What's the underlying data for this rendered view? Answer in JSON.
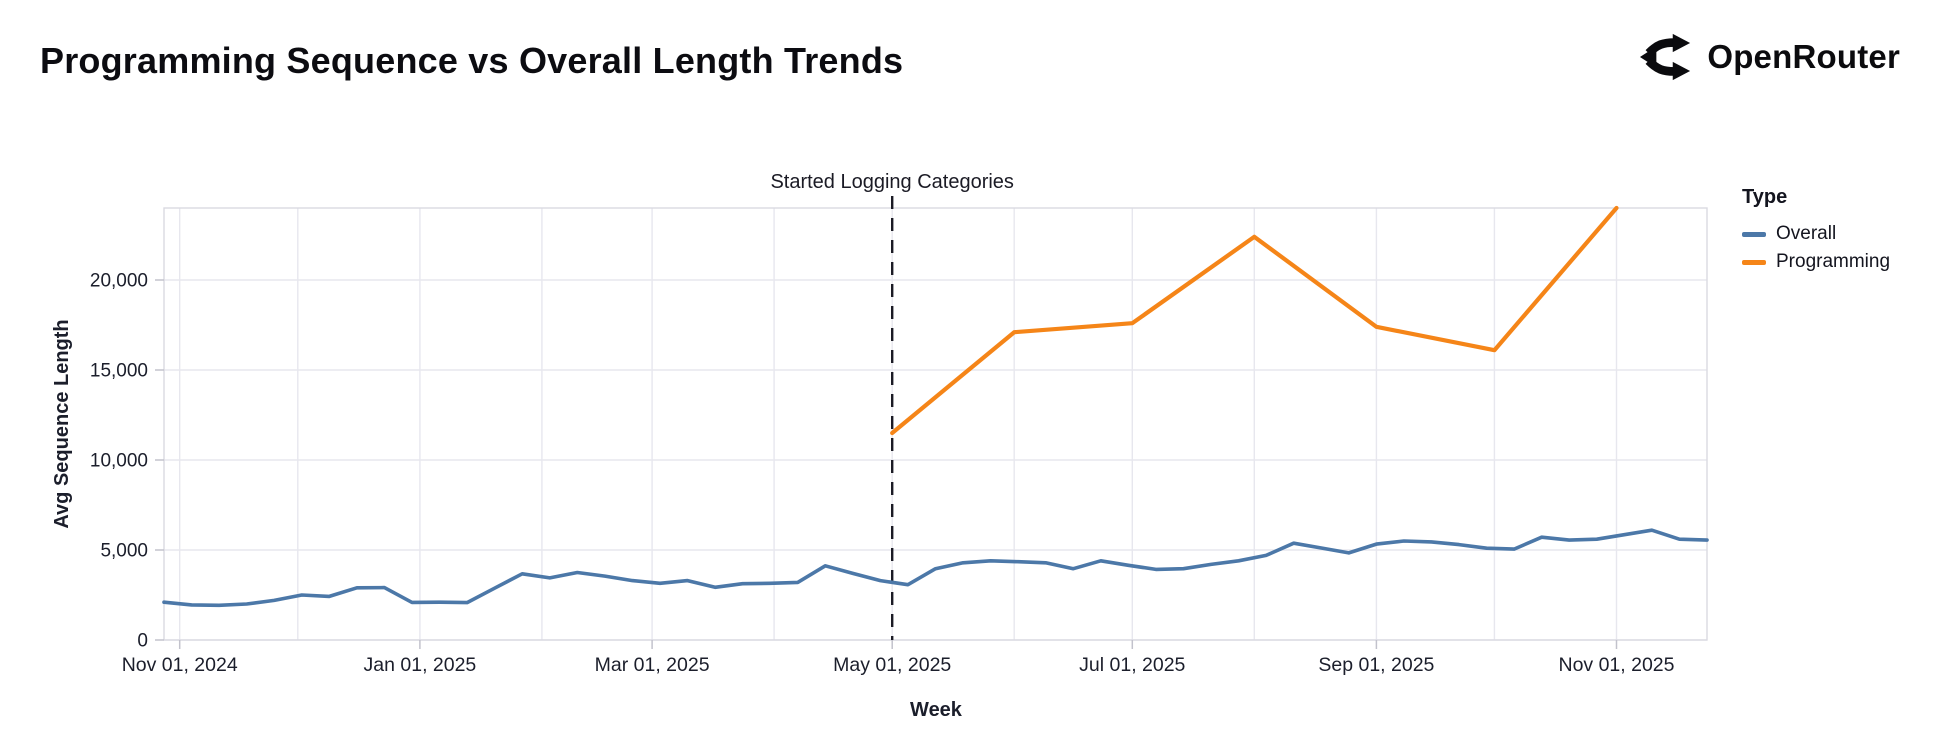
{
  "header": {
    "title": "Programming Sequence vs Overall Length Trends",
    "logo_text": "OpenRouter"
  },
  "legend": {
    "title": "Type",
    "entries": [
      {
        "label": "Overall",
        "color": "#4c78a8"
      },
      {
        "label": "Programming",
        "color": "#f58518"
      }
    ]
  },
  "chart_data": {
    "type": "line",
    "title": "Programming Sequence vs Overall Length Trends",
    "xlabel": "Week",
    "ylabel": "Avg Sequence Length",
    "ylim": [
      0,
      24000
    ],
    "yticks": [
      0,
      5000,
      10000,
      15000,
      20000
    ],
    "ytick_labels": [
      "0",
      "5,000",
      "10,000",
      "15,000",
      "20,000"
    ],
    "x_domain": [
      "2024-10-28",
      "2025-11-24"
    ],
    "xticks": [
      {
        "date": "2024-11-01",
        "label": "Nov 01, 2024"
      },
      {
        "date": "2025-01-01",
        "label": "Jan 01, 2025"
      },
      {
        "date": "2025-03-01",
        "label": "Mar 01, 2025"
      },
      {
        "date": "2025-05-01",
        "label": "May 01, 2025"
      },
      {
        "date": "2025-07-01",
        "label": "Jul 01, 2025"
      },
      {
        "date": "2025-09-01",
        "label": "Sep 01, 2025"
      },
      {
        "date": "2025-11-01",
        "label": "Nov 01, 2025"
      }
    ],
    "month_gridlines": [
      "2024-11-01",
      "2024-12-01",
      "2025-01-01",
      "2025-02-01",
      "2025-03-01",
      "2025-04-01",
      "2025-05-01",
      "2025-06-01",
      "2025-07-01",
      "2025-08-01",
      "2025-09-01",
      "2025-10-01",
      "2025-11-01"
    ],
    "grid": true,
    "legend_position": "right",
    "annotation": {
      "text": "Started Logging Categories",
      "date": "2025-05-01"
    },
    "series": [
      {
        "name": "Overall",
        "color": "#4c78a8",
        "points": [
          {
            "date": "2024-10-28",
            "value": 2100
          },
          {
            "date": "2024-11-04",
            "value": 1950
          },
          {
            "date": "2024-11-11",
            "value": 1930
          },
          {
            "date": "2024-11-18",
            "value": 2000
          },
          {
            "date": "2024-11-25",
            "value": 2200
          },
          {
            "date": "2024-12-02",
            "value": 2500
          },
          {
            "date": "2024-12-09",
            "value": 2420
          },
          {
            "date": "2024-12-16",
            "value": 2900
          },
          {
            "date": "2024-12-23",
            "value": 2910
          },
          {
            "date": "2024-12-30",
            "value": 2090
          },
          {
            "date": "2025-01-06",
            "value": 2100
          },
          {
            "date": "2025-01-13",
            "value": 2080
          },
          {
            "date": "2025-01-20",
            "value": 2880
          },
          {
            "date": "2025-01-27",
            "value": 3680
          },
          {
            "date": "2025-02-03",
            "value": 3450
          },
          {
            "date": "2025-02-10",
            "value": 3750
          },
          {
            "date": "2025-02-17",
            "value": 3550
          },
          {
            "date": "2025-02-24",
            "value": 3300
          },
          {
            "date": "2025-03-03",
            "value": 3150
          },
          {
            "date": "2025-03-10",
            "value": 3300
          },
          {
            "date": "2025-03-17",
            "value": 2930
          },
          {
            "date": "2025-03-24",
            "value": 3130
          },
          {
            "date": "2025-03-31",
            "value": 3150
          },
          {
            "date": "2025-04-07",
            "value": 3200
          },
          {
            "date": "2025-04-14",
            "value": 4120
          },
          {
            "date": "2025-04-21",
            "value": 3700
          },
          {
            "date": "2025-04-28",
            "value": 3300
          },
          {
            "date": "2025-05-05",
            "value": 3070
          },
          {
            "date": "2025-05-12",
            "value": 3960
          },
          {
            "date": "2025-05-19",
            "value": 4290
          },
          {
            "date": "2025-05-26",
            "value": 4400
          },
          {
            "date": "2025-06-02",
            "value": 4350
          },
          {
            "date": "2025-06-09",
            "value": 4290
          },
          {
            "date": "2025-06-16",
            "value": 3960
          },
          {
            "date": "2025-06-23",
            "value": 4400
          },
          {
            "date": "2025-06-30",
            "value": 4150
          },
          {
            "date": "2025-07-07",
            "value": 3920
          },
          {
            "date": "2025-07-14",
            "value": 3960
          },
          {
            "date": "2025-07-21",
            "value": 4200
          },
          {
            "date": "2025-07-28",
            "value": 4400
          },
          {
            "date": "2025-08-04",
            "value": 4700
          },
          {
            "date": "2025-08-11",
            "value": 5380
          },
          {
            "date": "2025-08-18",
            "value": 5110
          },
          {
            "date": "2025-08-25",
            "value": 4840
          },
          {
            "date": "2025-09-01",
            "value": 5330
          },
          {
            "date": "2025-09-08",
            "value": 5500
          },
          {
            "date": "2025-09-15",
            "value": 5450
          },
          {
            "date": "2025-09-22",
            "value": 5300
          },
          {
            "date": "2025-09-29",
            "value": 5100
          },
          {
            "date": "2025-10-06",
            "value": 5050
          },
          {
            "date": "2025-10-13",
            "value": 5710
          },
          {
            "date": "2025-10-20",
            "value": 5550
          },
          {
            "date": "2025-10-27",
            "value": 5600
          },
          {
            "date": "2025-11-03",
            "value": 5850
          },
          {
            "date": "2025-11-10",
            "value": 6100
          },
          {
            "date": "2025-11-17",
            "value": 5600
          },
          {
            "date": "2025-11-24",
            "value": 5550
          }
        ]
      },
      {
        "name": "Programming",
        "color": "#f58518",
        "points": [
          {
            "date": "2025-05-01",
            "value": 11500
          },
          {
            "date": "2025-06-01",
            "value": 17100
          },
          {
            "date": "2025-07-01",
            "value": 17600
          },
          {
            "date": "2025-08-01",
            "value": 22400
          },
          {
            "date": "2025-09-01",
            "value": 17400
          },
          {
            "date": "2025-10-01",
            "value": 16100
          },
          {
            "date": "2025-11-01",
            "value": 24000
          }
        ]
      }
    ]
  },
  "style": {
    "grid_color": "#e7e7ee",
    "border_color": "#dadae2",
    "tick_color": "#c2c2cc",
    "label_color": "#1b1e2b",
    "annotation_color": "#1b1b25"
  }
}
